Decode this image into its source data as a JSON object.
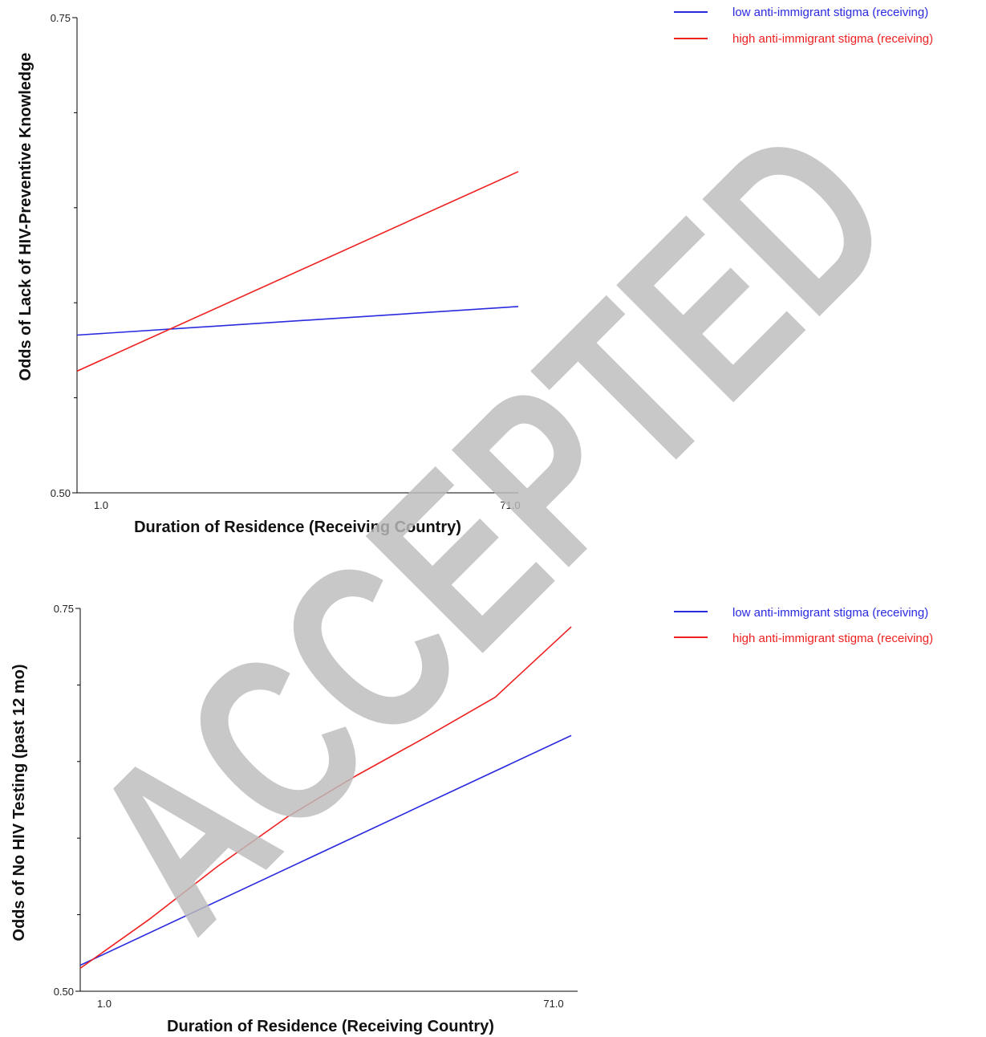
{
  "charts": [
    {
      "type": "line",
      "ylabel": "Odds of Lack of HIV-Preventive Knowledge",
      "xlabel": "Duration of Residence (Receiving Country)",
      "ytick_labels": [
        "0.75",
        "0.50"
      ],
      "xtick_labels": [
        "1.0",
        "71.0"
      ],
      "legend": [
        {
          "label": "low anti-immigrant stigma (receiving)",
          "color": "#2a2ae0"
        },
        {
          "label": "high anti-immigrant stigma (receiving)",
          "color": "#ee2020"
        }
      ]
    },
    {
      "type": "line",
      "ylabel": "Odds of No HIV Testing (past 12 mo)",
      "xlabel": "Duration of Residence (Receiving Country)",
      "ytick_labels": [
        "0.75",
        "0.50"
      ],
      "xtick_labels": [
        "1.0",
        "71.0"
      ],
      "legend": [
        {
          "label": "low anti-immigrant stigma (receiving)",
          "color": "#2a2ae0"
        },
        {
          "label": "high anti-immigrant stigma (receiving)",
          "color": "#ee2020"
        }
      ]
    }
  ],
  "watermark": "ACCEPTED",
  "chart_data": [
    {
      "type": "line",
      "title": "",
      "xlabel": "Duration of Residence (Receiving Country)",
      "ylabel": "Odds of Lack of HIV-Preventive Knowledge",
      "xlim": [
        0,
        71.0
      ],
      "ylim": [
        0.5,
        0.75
      ],
      "xticks": [
        1.0,
        71.0
      ],
      "yticks": [
        0.5,
        0.75
      ],
      "grid": false,
      "legend_position": "top-right",
      "series": [
        {
          "name": "low anti-immigrant stigma (receiving)",
          "color": "#2a2ae0",
          "x": [
            0,
            71.0
          ],
          "y": [
            0.583,
            0.598
          ]
        },
        {
          "name": "high anti-immigrant stigma (receiving)",
          "color": "#ee2020",
          "x": [
            0,
            71.0
          ],
          "y": [
            0.564,
            0.669
          ]
        }
      ]
    },
    {
      "type": "line",
      "title": "",
      "xlabel": "Duration of Residence (Receiving Country)",
      "ylabel": "Odds of No HIV Testing (past 12 mo)",
      "xlim": [
        0,
        71.0
      ],
      "ylim": [
        0.5,
        0.75
      ],
      "xticks": [
        1.0,
        71.0
      ],
      "yticks": [
        0.5,
        0.75
      ],
      "grid": false,
      "legend_position": "top-right",
      "series": [
        {
          "name": "low anti-immigrant stigma (receiving)",
          "color": "#2a2ae0",
          "x": [
            0,
            71.0
          ],
          "y": [
            0.517,
            0.667
          ]
        },
        {
          "name": "high anti-immigrant stigma (receiving)",
          "color": "#ee2020",
          "x": [
            0,
            10,
            20,
            30,
            40,
            50,
            60,
            71.0
          ],
          "y": [
            0.515,
            0.547,
            0.582,
            0.614,
            0.641,
            0.666,
            0.692,
            0.738
          ]
        }
      ]
    }
  ]
}
